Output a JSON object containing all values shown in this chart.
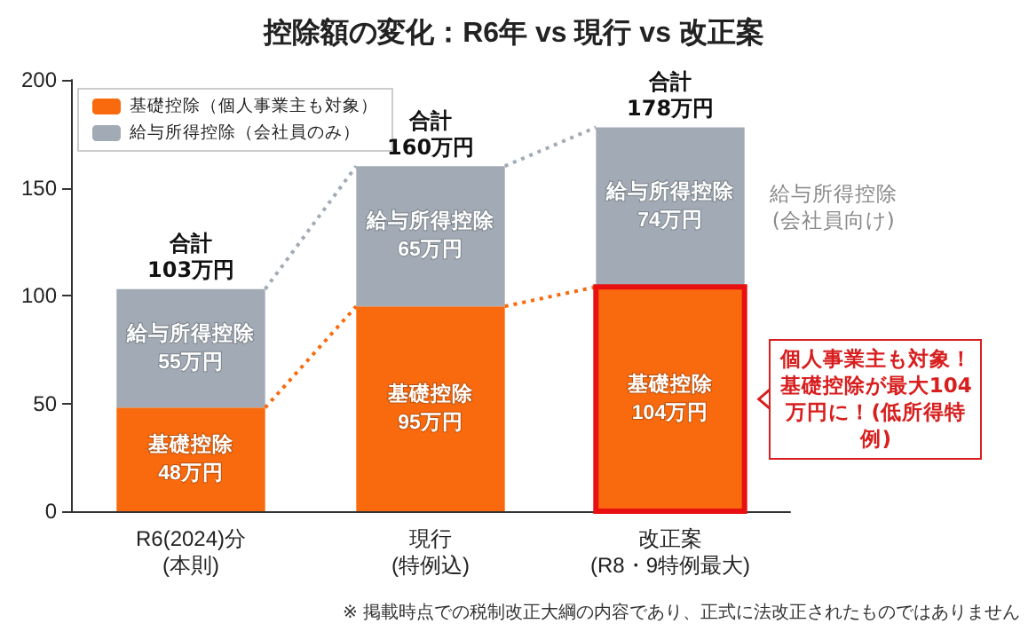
{
  "chart_data": {
    "type": "bar",
    "title": "控除額の変化：R6年 vs 現行 vs 改正案",
    "stacked": true,
    "categories": [
      "R6(2024)分\n(本則)",
      "現行\n(特例込)",
      "改正案\n(R8・9特例最大)"
    ],
    "series": [
      {
        "name": "基礎控除（個人事業主も対象）",
        "color": "#f96a0e",
        "values": [
          48,
          95,
          104
        ],
        "value_labels": [
          "基礎控除\n48万円",
          "基礎控除\n95万円",
          "基礎控除\n104万円"
        ]
      },
      {
        "name": "給与所得控除（会社員のみ）",
        "color": "#a2abb5",
        "values": [
          55,
          65,
          74
        ],
        "value_labels": [
          "給与所得控除\n55万円",
          "給与所得控除\n65万円",
          "給与所得控除\n74万円"
        ]
      }
    ],
    "totals": [
      "合計\n103万円",
      "合計\n160万円",
      "合計\n178万円"
    ],
    "ylim": [
      0,
      200
    ],
    "yticks": [
      0,
      50,
      100,
      150,
      200
    ],
    "grid": false,
    "legend": "top left",
    "annotations": [
      "給与所得控除\n(会社員向け)",
      "個人事業主も対象！基礎控除が最大104万円に！(低所得特例)",
      "※ 掲載時点での税制改正大綱の内容であり、正式に法改正されたものではありません"
    ]
  }
}
